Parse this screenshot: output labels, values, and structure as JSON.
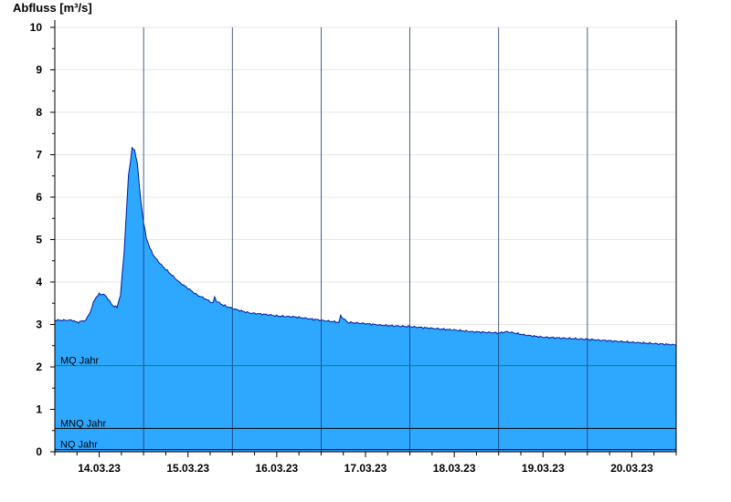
{
  "chart_data": {
    "type": "area",
    "ylabel": "Abfluss [m³/s]",
    "xlabel": "",
    "ylim": [
      0,
      10
    ],
    "yticks": [
      0,
      1,
      2,
      3,
      4,
      5,
      6,
      7,
      8,
      9,
      10
    ],
    "xlim_days": [
      13.5,
      20.5
    ],
    "date_ticks": [
      {
        "label": "14.03.23",
        "day": 14
      },
      {
        "label": "15.03.23",
        "day": 15
      },
      {
        "label": "16.03.23",
        "day": 16
      },
      {
        "label": "17.03.23",
        "day": 17
      },
      {
        "label": "18.03.23",
        "day": 18
      },
      {
        "label": "19.03.23",
        "day": 19
      },
      {
        "label": "20.03.23",
        "day": 20
      }
    ],
    "grid": true,
    "series": [
      {
        "name": "",
        "x_day": [
          13.5,
          13.7,
          13.75,
          13.85,
          13.9,
          13.95,
          14.0,
          14.06,
          14.1,
          14.15,
          14.2,
          14.24,
          14.28,
          14.33,
          14.37,
          14.4,
          14.43,
          14.45,
          14.47,
          14.5,
          14.53,
          14.57,
          14.62,
          14.7,
          14.8,
          14.9,
          15.0,
          15.1,
          15.2,
          15.28,
          15.3,
          15.32,
          15.4,
          15.5,
          15.6,
          15.7,
          15.8,
          15.9,
          16.0,
          16.2,
          16.5,
          16.7,
          16.72,
          16.8,
          17.0,
          17.2,
          17.5,
          17.8,
          18.0,
          18.2,
          18.5,
          18.6,
          18.8,
          19.0,
          19.5,
          20.0,
          20.5
        ],
        "values": [
          3.1,
          3.1,
          3.05,
          3.1,
          3.3,
          3.6,
          3.72,
          3.7,
          3.6,
          3.45,
          3.4,
          3.7,
          4.7,
          6.5,
          7.15,
          7.1,
          6.8,
          6.3,
          5.9,
          5.4,
          5.05,
          4.8,
          4.6,
          4.4,
          4.2,
          4.0,
          3.85,
          3.7,
          3.6,
          3.5,
          3.65,
          3.55,
          3.45,
          3.38,
          3.32,
          3.27,
          3.25,
          3.23,
          3.2,
          3.18,
          3.1,
          3.05,
          3.2,
          3.05,
          3.02,
          2.98,
          2.95,
          2.9,
          2.87,
          2.83,
          2.8,
          2.83,
          2.75,
          2.7,
          2.65,
          2.58,
          2.52
        ],
        "color": "#2ea8ff",
        "line_color": "#001a99"
      }
    ],
    "reference_lines": [
      {
        "label": "MQ Jahr",
        "value": 2.03,
        "color": "#00875a"
      },
      {
        "label": "MNQ Jahr",
        "value": 0.55,
        "color": "#000000"
      },
      {
        "label": "NQ Jahr",
        "value": 0.05,
        "color": "#000000"
      }
    ]
  }
}
